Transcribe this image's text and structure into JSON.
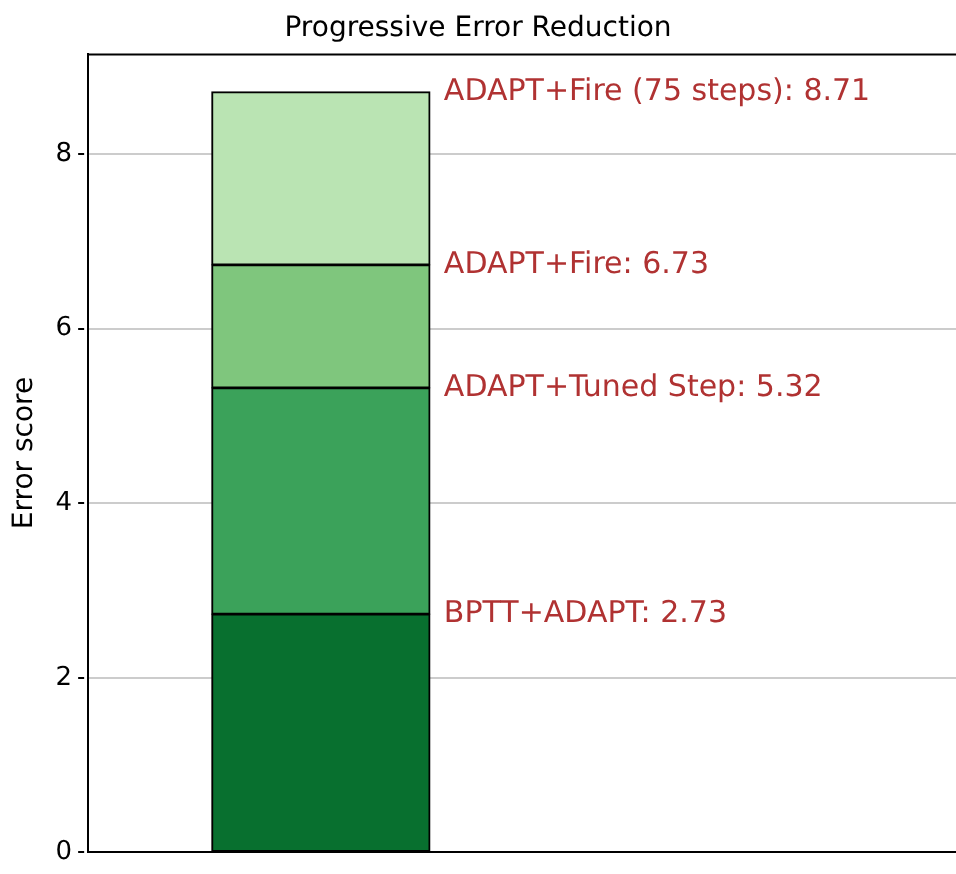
{
  "chart_data": {
    "type": "bar",
    "title": "Progressive Error Reduction",
    "ylabel": "Error score",
    "stacked": true,
    "categories": [
      null
    ],
    "series": [
      {
        "color": "#08702f",
        "values": [
          2.73
        ]
      },
      {
        "color": "#3ba25a",
        "values": [
          2.59
        ]
      },
      {
        "color": "#7fc67d",
        "values": [
          1.41
        ]
      },
      {
        "color": "#bae4b3",
        "values": [
          1.98
        ]
      }
    ],
    "ylim": [
      0,
      9.15
    ],
    "yticks": [
      0,
      2,
      4,
      6,
      8
    ],
    "grid": "y",
    "annotations": [
      "BPTT+ADAPT: 2.73",
      "ADAPT+Tuned Step: 5.32",
      "ADAPT+Fire: 6.73",
      "ADAPT+Fire (75 steps): 8.71"
    ]
  }
}
